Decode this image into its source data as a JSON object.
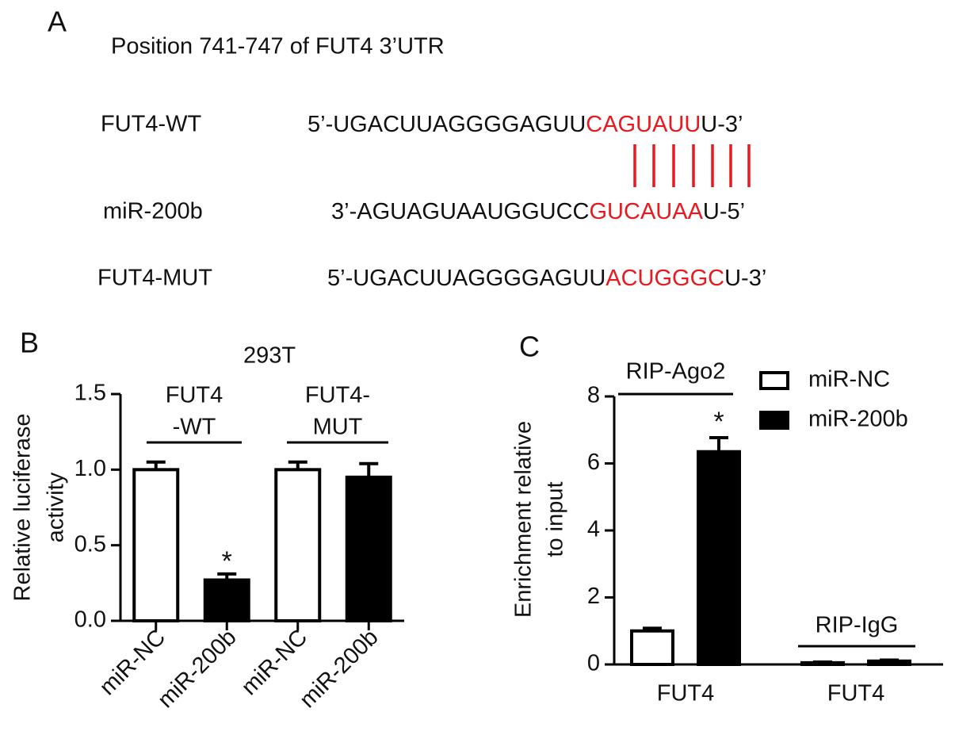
{
  "panel_a": {
    "panel_label": "A",
    "title": "Position 741-747 of FUT4 3’UTR",
    "rows": [
      {
        "label": "FUT4-WT",
        "prefix": "5’-UGACUUAGGGGAGUU",
        "site": "CAGUAUU",
        "suffix": "U-3’"
      },
      {
        "label": "miR-200b",
        "prefix": "3’-AGUAGUAAUGGUCC",
        "site": "GUCAUAA",
        "suffix": "U-5’"
      },
      {
        "label": "FUT4-MUT",
        "prefix": "5’-UGACUUAGGGGAGUU",
        "site": "ACUGGGC",
        "suffix": "U-3’"
      }
    ]
  },
  "chart_data": [
    {
      "type": "bar",
      "panel_label": "B",
      "title": "293T",
      "y_label": [
        "Relative luciferase",
        "activity"
      ],
      "categories": [
        "miR-NC",
        "miR-200b",
        "miR-NC",
        "miR-200b"
      ],
      "values": [
        1.0,
        0.27,
        1.0,
        0.95
      ],
      "errors": [
        0.05,
        0.04,
        0.05,
        0.09
      ],
      "colors": [
        "#ffffff",
        "#000000",
        "#ffffff",
        "#000000"
      ],
      "ylim": [
        0,
        1.5
      ],
      "yticks": [
        {
          "value": 0,
          "label": "0.0"
        },
        0.5,
        {
          "value": 1,
          "label": "1.0"
        },
        1.5
      ],
      "group_labels": [
        [
          "FUT4",
          "-WT"
        ],
        [
          "FUT4-",
          "MUT"
        ]
      ],
      "significance": "*"
    },
    {
      "type": "bar",
      "panel_label": "C",
      "y_label": [
        "Enrichment relative",
        "to input"
      ],
      "categories": [
        "FUT4",
        "FUT4"
      ],
      "group_labels": [
        "RIP-Ago2",
        "RIP-IgG"
      ],
      "series": [
        {
          "name": "miR-NC",
          "color": "#ffffff",
          "values": [
            1.0,
            0.05
          ],
          "errors": [
            0.08,
            0.02
          ]
        },
        {
          "name": "miR-200b",
          "color": "#000000",
          "values": [
            6.35,
            0.1
          ],
          "errors": [
            0.42,
            0.03
          ]
        }
      ],
      "ylim": [
        0,
        8
      ],
      "yticks": [
        0,
        2,
        4,
        6,
        8
      ],
      "significance": "*"
    }
  ]
}
